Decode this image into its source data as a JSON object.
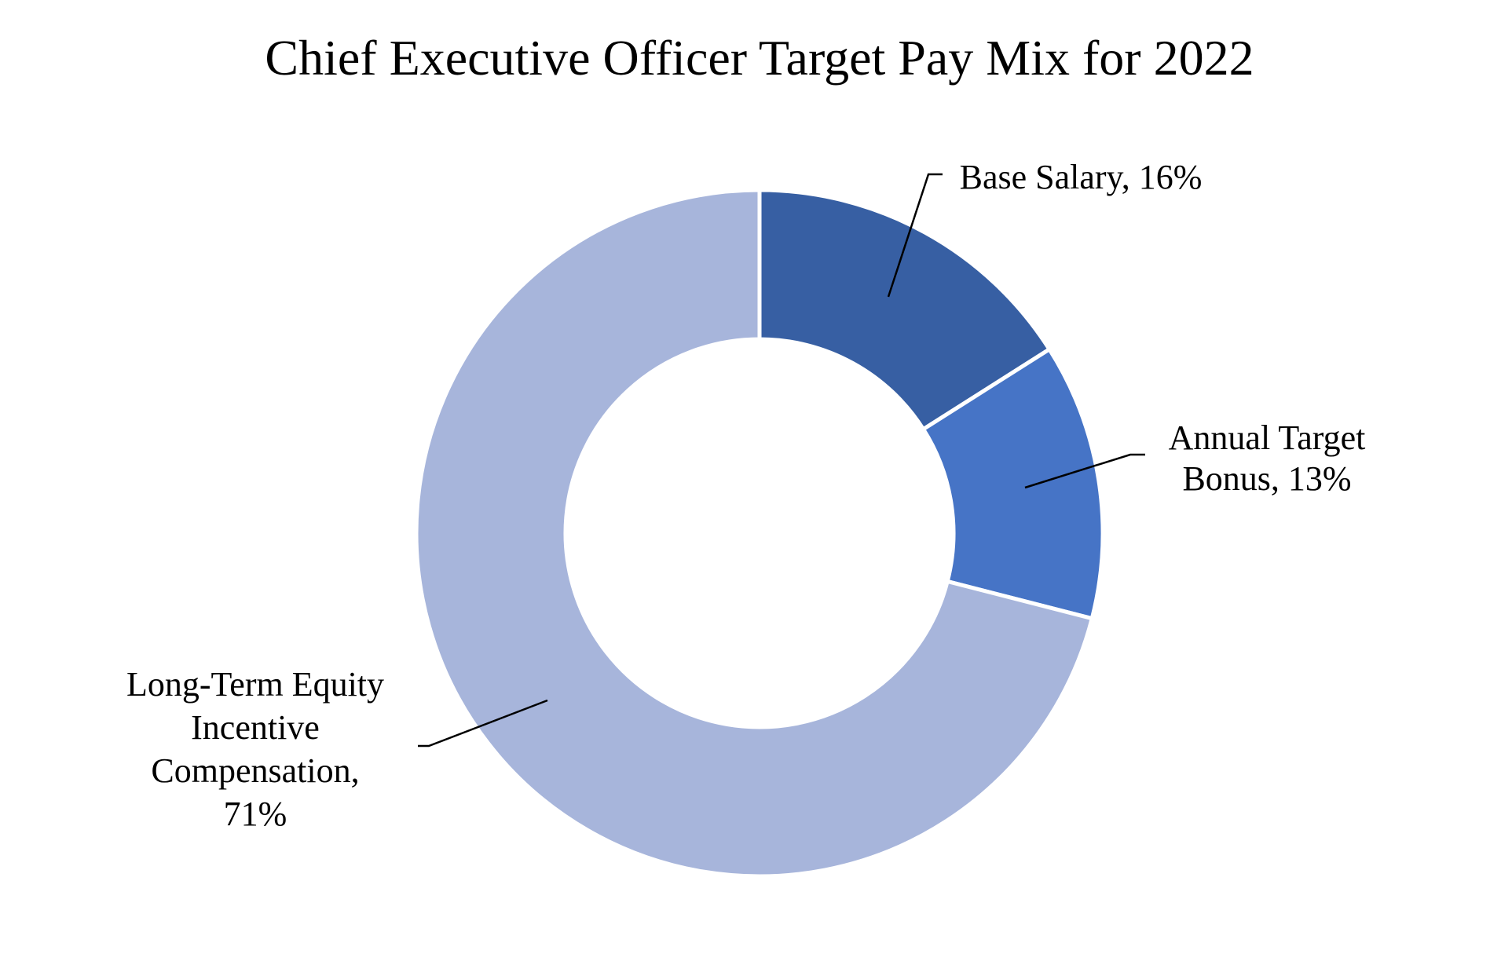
{
  "chart_data": {
    "type": "pie",
    "variant": "donut",
    "title": "Chief Executive Officer Target Pay Mix for 2022",
    "categories": [
      "Base Salary",
      "Annual Target Bonus",
      "Long-Term Equity Incentive Compensation"
    ],
    "values": [
      16,
      13,
      71
    ],
    "unit": "%",
    "colors": [
      "#375FA3",
      "#4674C6",
      "#A7B5DB"
    ],
    "data_labels": [
      [
        "Base Salary, 16%"
      ],
      [
        "Annual Target",
        "Bonus, 13%"
      ],
      [
        "Long-Term Equity",
        "Incentive",
        "Compensation,",
        "71%"
      ]
    ],
    "legend": "none"
  }
}
